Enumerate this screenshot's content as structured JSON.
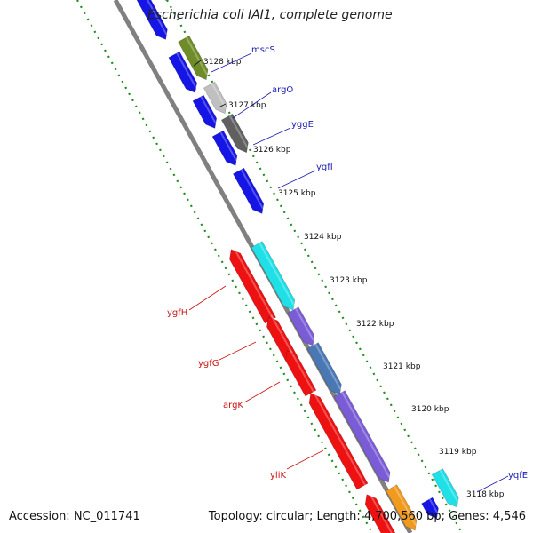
{
  "title": "Escherichia coli IAI1, complete genome",
  "footer": {
    "accession": "Accession: NC_011741",
    "summary": "Topology: circular; Length: 4,700,560 bp; Genes: 4,546"
  },
  "ticks": [
    "3128 kbp",
    "3127 kbp",
    "3126 kbp",
    "3125 kbp",
    "3124 kbp",
    "3123 kbp",
    "3122 kbp",
    "3121 kbp",
    "3120 kbp",
    "3119 kbp",
    "3118 kbp"
  ],
  "gene_labels": {
    "right": [
      "mscS",
      "argO",
      "yggE",
      "ygfI",
      "yqfE"
    ],
    "left": [
      "ygfH",
      "ygfG",
      "argK",
      "yliK"
    ]
  },
  "colors": {
    "backbone": "#808080",
    "tick_dots": "#1e8c1e",
    "right_label": "#1a1ab4",
    "left_label": "#cc1111",
    "blue": "#1515e6",
    "cyan": "#1ee0e6",
    "olive": "#6e8c28",
    "lightgray": "#c0c0c0",
    "darkgray": "#606060",
    "red": "#ee1111",
    "purple": "#7a5cd6",
    "steelblue": "#4a78b4",
    "orange": "#f09a1e"
  }
}
